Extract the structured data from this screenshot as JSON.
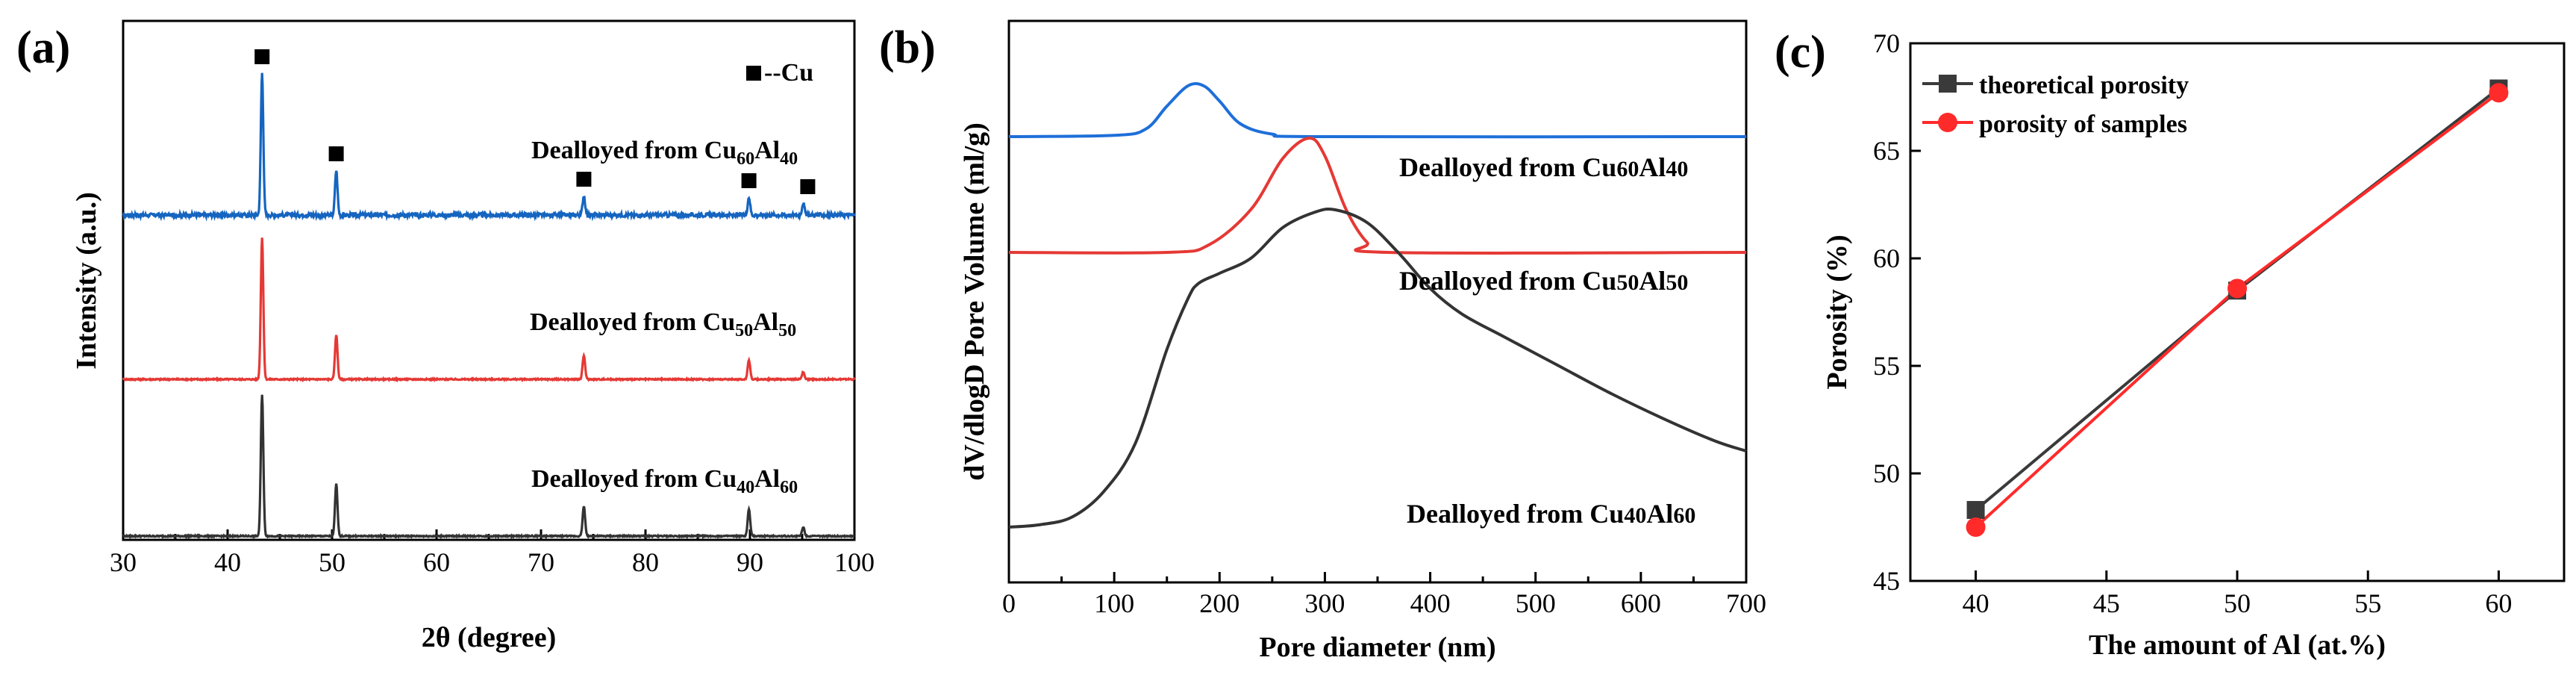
{
  "panels": {
    "a": {
      "label": "(a)",
      "xlabel": "2θ (degree)",
      "ylabel": "Intensity (a.u.)",
      "xlim": [
        30,
        100
      ],
      "xticks": [
        "30",
        "40",
        "50",
        "60",
        "70",
        "80",
        "90",
        "100"
      ],
      "legend": {
        "marker_label": "--Cu"
      },
      "cu_peak_positions": [
        43.3,
        50.4,
        74.1,
        89.9,
        95.1
      ],
      "curves": [
        {
          "name": "Dealloyed from Cu60Al40",
          "prefix": "Dealloyed from Cu",
          "sub1": "60",
          "mid": "Al",
          "sub2": "40",
          "color": "#1565C0",
          "peak_heights": [
            0.95,
            0.3,
            0.13,
            0.12,
            0.08
          ]
        },
        {
          "name": "Dealloyed from Cu50Al50",
          "prefix": "Dealloyed from Cu",
          "sub1": "50",
          "mid": "Al",
          "sub2": "50",
          "color": "#E53935",
          "peak_heights": [
            0.95,
            0.3,
            0.16,
            0.13,
            0.05
          ]
        },
        {
          "name": "Dealloyed from Cu40Al60",
          "prefix": "Dealloyed from Cu",
          "sub1": "40",
          "mid": "Al",
          "sub2": "60",
          "color": "#333333",
          "peak_heights": [
            0.95,
            0.35,
            0.2,
            0.18,
            0.06
          ]
        }
      ]
    },
    "b": {
      "label": "(b)",
      "xlabel": "Pore diameter (nm)",
      "ylabel": "dV/dlogD Pore Volume (ml/g)",
      "xlim": [
        0,
        700
      ],
      "xticks": [
        "0",
        "100",
        "200",
        "300",
        "400",
        "500",
        "600",
        "700"
      ],
      "curves": [
        {
          "name": "Dealloyed from Cu60Al40",
          "prefix": "Dealloyed from Cu",
          "sub1": "60",
          "mid": "Al",
          "sub2": "40",
          "color": "#1E6FD9",
          "points": [
            [
              0,
              0
            ],
            [
              100,
              0.005
            ],
            [
              130,
              0.03
            ],
            [
              150,
              0.12
            ],
            [
              170,
              0.2
            ],
            [
              185,
              0.2
            ],
            [
              200,
              0.14
            ],
            [
              220,
              0.05
            ],
            [
              250,
              0.01
            ],
            [
              300,
              0
            ],
            [
              700,
              0
            ]
          ]
        },
        {
          "name": "Dealloyed from Cu50Al50",
          "prefix": "Dealloyed from Cu",
          "sub1": "50",
          "mid": "Al",
          "sub2": "50",
          "color": "#E53935",
          "points": [
            [
              0,
              0
            ],
            [
              150,
              0
            ],
            [
              190,
              0.03
            ],
            [
              230,
              0.17
            ],
            [
              260,
              0.37
            ],
            [
              285,
              0.45
            ],
            [
              300,
              0.38
            ],
            [
              320,
              0.17
            ],
            [
              340,
              0.04
            ],
            [
              360,
              0
            ],
            [
              700,
              0
            ]
          ]
        },
        {
          "name": "Dealloyed from Cu40Al60",
          "prefix": "Dealloyed from Cu",
          "sub1": "40",
          "mid": "Al",
          "sub2": "60",
          "color": "#333333",
          "points": [
            [
              0,
              0
            ],
            [
              30,
              0.01
            ],
            [
              60,
              0.04
            ],
            [
              90,
              0.14
            ],
            [
              120,
              0.33
            ],
            [
              150,
              0.7
            ],
            [
              170,
              0.9
            ],
            [
              180,
              0.96
            ],
            [
              200,
              1.0
            ],
            [
              230,
              1.06
            ],
            [
              260,
              1.18
            ],
            [
              290,
              1.24
            ],
            [
              310,
              1.25
            ],
            [
              340,
              1.2
            ],
            [
              370,
              1.08
            ],
            [
              400,
              0.94
            ],
            [
              430,
              0.84
            ],
            [
              470,
              0.75
            ],
            [
              520,
              0.64
            ],
            [
              570,
              0.53
            ],
            [
              620,
              0.43
            ],
            [
              670,
              0.34
            ],
            [
              700,
              0.3
            ]
          ]
        }
      ]
    },
    "c": {
      "label": "(c)",
      "xlabel": "The amount of Al (at.%)",
      "ylabel": "Porosity (%)",
      "xlim": [
        37.5,
        62.5
      ],
      "ylim": [
        45,
        70
      ],
      "xticks": [
        "40",
        "45",
        "50",
        "55",
        "60"
      ],
      "yticks": [
        "45",
        "50",
        "55",
        "60",
        "65",
        "70"
      ],
      "series": [
        {
          "name": "theoretical porosity",
          "color": "#3A3A3A",
          "marker": "square",
          "x": [
            40,
            50,
            60
          ],
          "y": [
            48.3,
            58.5,
            67.9
          ]
        },
        {
          "name": "porosity of samples",
          "color": "#FF2A2A",
          "marker": "circle",
          "x": [
            40,
            50,
            60
          ],
          "y": [
            47.5,
            58.6,
            67.7
          ]
        }
      ]
    }
  }
}
